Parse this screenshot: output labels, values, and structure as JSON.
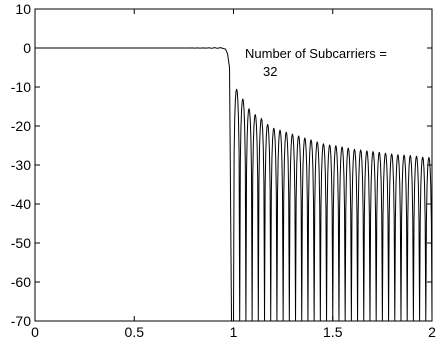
{
  "chart_data": {
    "type": "line",
    "title": "",
    "xlabel": "",
    "ylabel": "",
    "xlim": [
      0,
      2
    ],
    "ylim": [
      -70,
      10
    ],
    "x_ticks": [
      0,
      0.5,
      1,
      1.5,
      2
    ],
    "x_tick_labels": [
      "0",
      "0.5",
      "1",
      "1.5",
      "2"
    ],
    "y_ticks": [
      10,
      0,
      -10,
      -20,
      -30,
      -40,
      -50,
      -60,
      -70
    ],
    "y_tick_labels": [
      "10",
      "0",
      "-10",
      "-20",
      "-30",
      "-40",
      "-50",
      "-60",
      "-70"
    ],
    "grid": false,
    "annotation": {
      "line1": "Number of Subcarriers =",
      "line2": "32"
    },
    "series": [
      {
        "line_color": "#000000",
        "passband": {
          "x_start": 0,
          "x_end": 0.94,
          "level_db": 0
        },
        "rolloff": {
          "x": [
            0.94,
            0.96,
            0.97,
            0.98,
            0.99
          ],
          "y": [
            0,
            -0.3,
            -1.5,
            -5,
            -70
          ]
        },
        "sidelobes": {
          "x_start": 1.0,
          "x_end": 2.0,
          "count": 32,
          "peak_db": [
            -10.5,
            -13,
            -15.5,
            -17,
            -18,
            -19.5,
            -20.5,
            -21,
            -21.5,
            -22,
            -22.5,
            -23,
            -23.5,
            -24,
            -24.5,
            -24.8,
            -25,
            -25.3,
            -25.6,
            -25.9,
            -26.1,
            -26.3,
            -26.5,
            -26.7,
            -26.9,
            -27.1,
            -27.3,
            -27.4,
            -27.5,
            -27.7,
            -27.9,
            -28
          ]
        }
      }
    ]
  }
}
